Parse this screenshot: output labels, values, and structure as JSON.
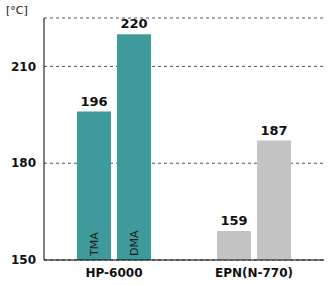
{
  "chart_data": {
    "type": "bar",
    "ylabel": "[°C]",
    "categories": [
      "HP-6000",
      "EPN(N-770)"
    ],
    "series": [
      {
        "name": "TMA",
        "values": [
          196,
          159
        ],
        "colors": [
          "#3f9a9c",
          "#c4c4c4"
        ]
      },
      {
        "name": "DMA",
        "values": [
          220,
          187
        ],
        "colors": [
          "#3f9a9c",
          "#c4c4c4"
        ]
      }
    ],
    "ylim": [
      150,
      225
    ],
    "yticks": [
      150,
      180,
      210
    ],
    "grid": true,
    "data_labels": true
  }
}
